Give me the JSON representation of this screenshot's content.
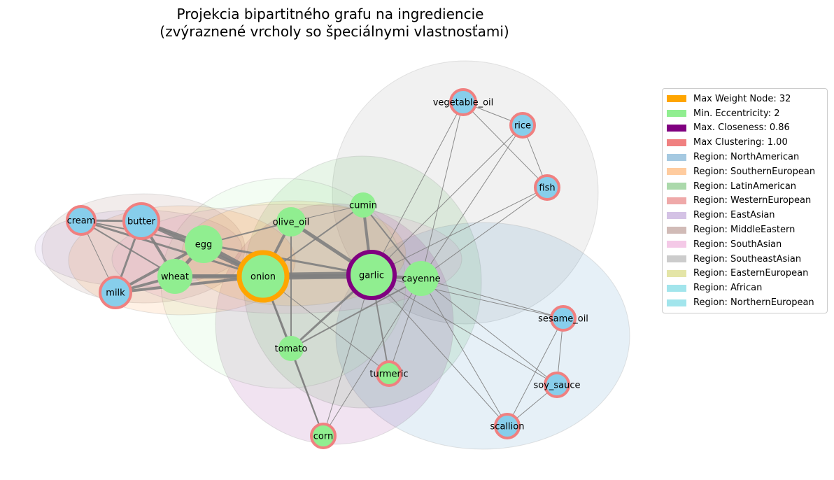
{
  "title": {
    "line1": "Projekcia bipartitného grafu na ingrediencie",
    "line2": "(zvýraznené vrcholy so špeciálnymi vlastnosťami)"
  },
  "colors": {
    "default_node": "#87CEEB",
    "min_eccentricity": "#90EE90",
    "max_weight_border": "#FFA500",
    "max_closeness_border": "#800080",
    "max_clustering_border": "#F08080",
    "edge": "#808080"
  },
  "legend": [
    {
      "label": "Max Weight Node: 32",
      "color": "#FFA500",
      "opacity": 1.0
    },
    {
      "label": "Min. Eccentricity: 2",
      "color": "#90EE90",
      "opacity": 1.0
    },
    {
      "label": "Max. Closeness: 0.86",
      "color": "#800080",
      "opacity": 1.0
    },
    {
      "label": "Max Clustering: 1.00",
      "color": "#F08080",
      "opacity": 1.0
    },
    {
      "label": "Region: NorthAmerican",
      "color": "#1f77b4",
      "opacity": 0.4
    },
    {
      "label": "Region: SouthernEuropean",
      "color": "#ff7f0e",
      "opacity": 0.4
    },
    {
      "label": "Region: LatinAmerican",
      "color": "#2ca02c",
      "opacity": 0.4
    },
    {
      "label": "Region: WesternEuropean",
      "color": "#d62728",
      "opacity": 0.4
    },
    {
      "label": "Region: EastAsian",
      "color": "#9467bd",
      "opacity": 0.4
    },
    {
      "label": "Region: MiddleEastern",
      "color": "#8c564b",
      "opacity": 0.4
    },
    {
      "label": "Region: SouthAsian",
      "color": "#e377c2",
      "opacity": 0.4
    },
    {
      "label": "Region: SoutheastAsian",
      "color": "#7f7f7f",
      "opacity": 0.4
    },
    {
      "label": "Region: EasternEuropean",
      "color": "#bcbd22",
      "opacity": 0.4
    },
    {
      "label": "Region: African",
      "color": "#17becf",
      "opacity": 0.4
    },
    {
      "label": "Region: NorthernEuropean",
      "color": "#17becf",
      "opacity": 0.4
    }
  ],
  "nodes": [
    {
      "id": "onion",
      "label": "onion",
      "fill": "#90EE90",
      "border": "#FFA500"
    },
    {
      "id": "garlic",
      "label": "garlic",
      "fill": "#90EE90",
      "border": "#800080"
    },
    {
      "id": "cayenne",
      "label": "cayenne",
      "fill": "#90EE90",
      "border": ""
    },
    {
      "id": "egg",
      "label": "egg",
      "fill": "#90EE90",
      "border": ""
    },
    {
      "id": "wheat",
      "label": "wheat",
      "fill": "#90EE90",
      "border": ""
    },
    {
      "id": "olive_oil",
      "label": "olive_oil",
      "fill": "#90EE90",
      "border": ""
    },
    {
      "id": "cumin",
      "label": "cumin",
      "fill": "#90EE90",
      "border": ""
    },
    {
      "id": "tomato",
      "label": "tomato",
      "fill": "#90EE90",
      "border": ""
    },
    {
      "id": "turmeric",
      "label": "turmeric",
      "fill": "#90EE90",
      "border": "#F08080"
    },
    {
      "id": "corn",
      "label": "corn",
      "fill": "#90EE90",
      "border": "#F08080"
    },
    {
      "id": "butter",
      "label": "butter",
      "fill": "#87CEEB",
      "border": "#F08080"
    },
    {
      "id": "cream",
      "label": "cream",
      "fill": "#87CEEB",
      "border": "#F08080"
    },
    {
      "id": "milk",
      "label": "milk",
      "fill": "#87CEEB",
      "border": "#F08080"
    },
    {
      "id": "vegetable_oil",
      "label": "vegetable_oil",
      "fill": "#87CEEB",
      "border": "#F08080"
    },
    {
      "id": "rice",
      "label": "rice",
      "fill": "#87CEEB",
      "border": "#F08080"
    },
    {
      "id": "fish",
      "label": "fish",
      "fill": "#87CEEB",
      "border": "#F08080"
    },
    {
      "id": "sesame_oil",
      "label": "sesame_oil",
      "fill": "#87CEEB",
      "border": "#F08080"
    },
    {
      "id": "soy_sauce",
      "label": "soy_sauce",
      "fill": "#87CEEB",
      "border": "#F08080"
    },
    {
      "id": "scallion",
      "label": "scallion",
      "fill": "#87CEEB",
      "border": "#F08080"
    }
  ],
  "edges": [
    [
      "onion",
      "garlic",
      10
    ],
    [
      "onion",
      "egg",
      6
    ],
    [
      "onion",
      "wheat",
      6
    ],
    [
      "onion",
      "butter",
      5
    ],
    [
      "onion",
      "milk",
      4
    ],
    [
      "onion",
      "olive_oil",
      4
    ],
    [
      "onion",
      "cream",
      3
    ],
    [
      "onion",
      "tomato",
      3
    ],
    [
      "onion",
      "cayenne",
      2
    ],
    [
      "onion",
      "cumin",
      2
    ],
    [
      "onion",
      "turmeric",
      1
    ],
    [
      "onion",
      "corn",
      2
    ],
    [
      "garlic",
      "olive_oil",
      5
    ],
    [
      "garlic",
      "cumin",
      4
    ],
    [
      "garlic",
      "cayenne",
      4
    ],
    [
      "garlic",
      "egg",
      3
    ],
    [
      "garlic",
      "wheat",
      3
    ],
    [
      "garlic",
      "tomato",
      3
    ],
    [
      "garlic",
      "turmeric",
      2
    ],
    [
      "garlic",
      "corn",
      1
    ],
    [
      "garlic",
      "vegetable_oil",
      1
    ],
    [
      "garlic",
      "rice",
      1
    ],
    [
      "garlic",
      "fish",
      1
    ],
    [
      "garlic",
      "sesame_oil",
      1
    ],
    [
      "garlic",
      "soy_sauce",
      1
    ],
    [
      "garlic",
      "scallion",
      1
    ],
    [
      "egg",
      "wheat",
      5
    ],
    [
      "egg",
      "butter",
      4
    ],
    [
      "egg",
      "milk",
      4
    ],
    [
      "egg",
      "cream",
      2
    ],
    [
      "egg",
      "olive_oil",
      2
    ],
    [
      "wheat",
      "butter",
      4
    ],
    [
      "wheat",
      "milk",
      4
    ],
    [
      "wheat",
      "cream",
      2
    ],
    [
      "butter",
      "milk",
      3
    ],
    [
      "butter",
      "cream",
      3
    ],
    [
      "cream",
      "milk",
      1
    ],
    [
      "olive_oil",
      "tomato",
      2
    ],
    [
      "olive_oil",
      "cumin",
      1
    ],
    [
      "cumin",
      "cayenne",
      2
    ],
    [
      "cayenne",
      "tomato",
      2
    ],
    [
      "cayenne",
      "turmeric",
      1
    ],
    [
      "cayenne",
      "corn",
      1
    ],
    [
      "cayenne",
      "vegetable_oil",
      1
    ],
    [
      "cayenne",
      "rice",
      1
    ],
    [
      "cayenne",
      "fish",
      1
    ],
    [
      "cayenne",
      "sesame_oil",
      1
    ],
    [
      "cayenne",
      "soy_sauce",
      1
    ],
    [
      "cayenne",
      "scallion",
      1
    ],
    [
      "tomato",
      "corn",
      2
    ],
    [
      "vegetable_oil",
      "rice",
      1
    ],
    [
      "vegetable_oil",
      "fish",
      1
    ],
    [
      "rice",
      "fish",
      1
    ],
    [
      "sesame_oil",
      "soy_sauce",
      1
    ],
    [
      "sesame_oil",
      "scallion",
      1
    ],
    [
      "soy_sauce",
      "scallion",
      1
    ]
  ]
}
